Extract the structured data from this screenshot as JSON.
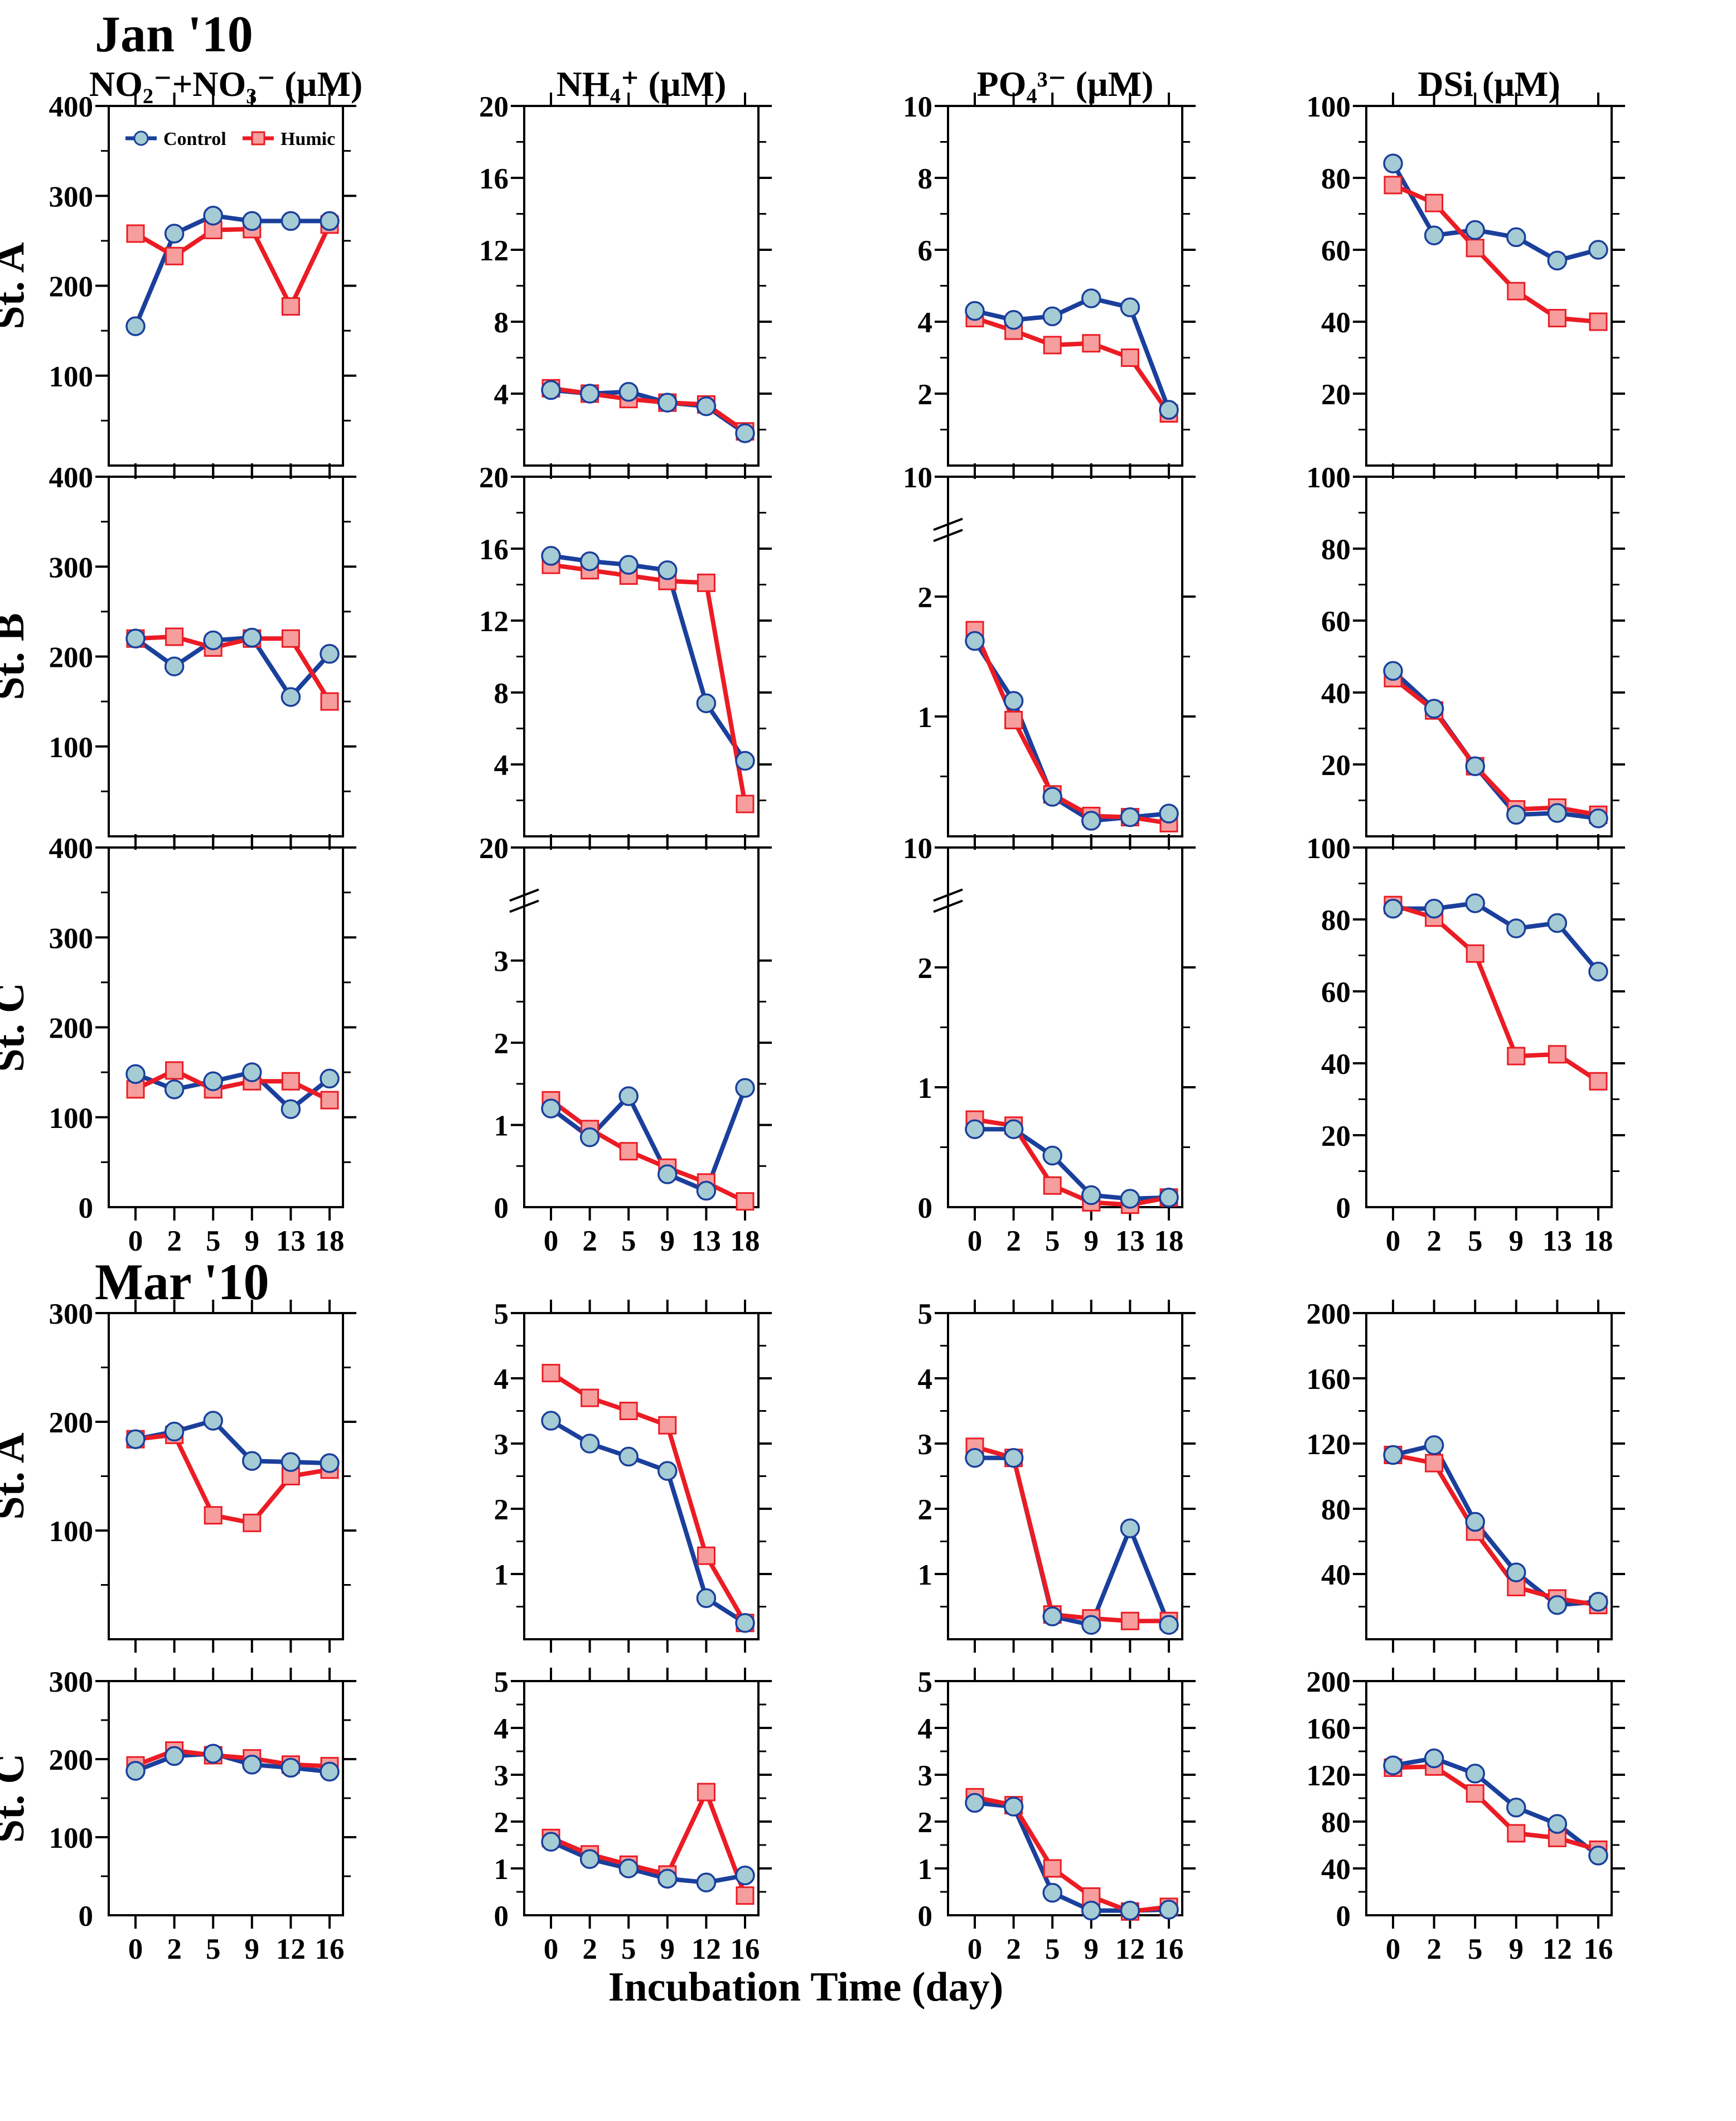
{
  "chart_data": {
    "type": "line",
    "x_label": "Incubation Time (day)",
    "zero_label": "0",
    "grid": false,
    "legend_position": "inside top-left of first panel",
    "legend": {
      "control": "Control",
      "humic": "Humic"
    },
    "colors": {
      "control_line": "#1a3f9c",
      "control_marker_fill": "#a5cbd4",
      "humic_line": "#eb1c24",
      "humic_marker_fill": "#f69e9e",
      "frame": "#000000"
    },
    "columns": [
      {
        "key": "no2no3",
        "title": "NO₂⁻+NO₃⁻ (µM)"
      },
      {
        "key": "nh4",
        "title": "NH₄⁺ (µM)"
      },
      {
        "key": "po4",
        "title": "PO₄³⁻ (µM)"
      },
      {
        "key": "dsi",
        "title": "DSi (µM)"
      }
    ],
    "sections": [
      {
        "title": "Jan '10",
        "x": [
          0,
          2,
          5,
          9,
          13,
          18
        ],
        "rows": [
          {
            "station": "St. A",
            "show_zero_label": false,
            "show_x_labels": false,
            "panels": [
              {
                "col": "no2no3",
                "ymax": 400,
                "yticks": [
                  100,
                  200,
                  300,
                  400
                ],
                "minor": 50,
                "legend": true,
                "control": [
                  155,
                  258,
                  278,
                  272,
                  272,
                  272
                ],
                "humic": [
                  258,
                  233,
                  262,
                  263,
                  177,
                  268
                ]
              },
              {
                "col": "nh4",
                "ymax": 20,
                "yticks": [
                  4,
                  8,
                  12,
                  16,
                  20
                ],
                "minor": 2,
                "control": [
                  4.2,
                  4.0,
                  4.1,
                  3.5,
                  3.3,
                  1.8
                ],
                "humic": [
                  4.3,
                  4.0,
                  3.7,
                  3.5,
                  3.4,
                  1.9
                ]
              },
              {
                "col": "po4",
                "ymax": 10,
                "yticks": [
                  2,
                  4,
                  6,
                  8,
                  10
                ],
                "minor": 1,
                "control": [
                  4.3,
                  4.05,
                  4.15,
                  4.65,
                  4.4,
                  1.55
                ],
                "humic": [
                  4.1,
                  3.75,
                  3.35,
                  3.4,
                  3.0,
                  1.45
                ]
              },
              {
                "col": "dsi",
                "ymax": 100,
                "yticks": [
                  20,
                  40,
                  60,
                  80,
                  100
                ],
                "minor": 10,
                "control": [
                  84,
                  64,
                  65.5,
                  63.5,
                  57,
                  60
                ],
                "humic": [
                  78,
                  73,
                  60.5,
                  48.5,
                  41,
                  40
                ]
              }
            ]
          },
          {
            "station": "St. B",
            "show_zero_label": false,
            "show_x_labels": false,
            "panels": [
              {
                "col": "no2no3",
                "ymax": 400,
                "yticks": [
                  100,
                  200,
                  300,
                  400
                ],
                "minor": 50,
                "control": [
                  220,
                  189,
                  218,
                  221,
                  155,
                  203
                ],
                "humic": [
                  220,
                  222,
                  210,
                  220,
                  220,
                  150
                ]
              },
              {
                "col": "nh4",
                "ymax": 20,
                "yticks": [
                  4,
                  8,
                  12,
                  16,
                  20
                ],
                "minor": 2,
                "control": [
                  15.6,
                  15.3,
                  15.1,
                  14.8,
                  7.4,
                  4.2
                ],
                "humic": [
                  15.1,
                  14.8,
                  14.5,
                  14.2,
                  14.1,
                  1.8
                ]
              },
              {
                "col": "po4",
                "broken": {
                  "top_label": 10,
                  "sub_max": 2.4
                },
                "yticks": [
                  1,
                  2
                ],
                "minor": 0.5,
                "control": [
                  1.63,
                  1.13,
                  0.33,
                  0.13,
                  0.16,
                  0.19
                ],
                "humic": [
                  1.72,
                  0.97,
                  0.35,
                  0.17,
                  0.16,
                  0.11
                ]
              },
              {
                "col": "dsi",
                "ymax": 100,
                "yticks": [
                  20,
                  40,
                  60,
                  80,
                  100
                ],
                "minor": 10,
                "control": [
                  46,
                  35.5,
                  19.5,
                  6,
                  6.5,
                  5
                ],
                "humic": [
                  44,
                  35,
                  19.5,
                  7.5,
                  8,
                  6
                ]
              }
            ]
          },
          {
            "station": "St. C",
            "show_zero_label": true,
            "show_x_labels": true,
            "panels": [
              {
                "col": "no2no3",
                "ymax": 400,
                "yticks": [
                  100,
                  200,
                  300,
                  400
                ],
                "minor": 50,
                "control": [
                  148,
                  131,
                  140,
                  150,
                  109,
                  143
                ],
                "humic": [
                  131,
                  152,
                  131,
                  140,
                  140,
                  119
                ]
              },
              {
                "col": "nh4",
                "broken": {
                  "top_label": 20,
                  "sub_max": 3.5
                },
                "yticks": [
                  1,
                  2,
                  3
                ],
                "minor": 0.5,
                "control": [
                  1.2,
                  0.85,
                  1.35,
                  0.4,
                  0.2,
                  1.45
                ],
                "humic": [
                  1.3,
                  0.95,
                  0.68,
                  0.48,
                  0.3,
                  0.07
                ]
              },
              {
                "col": "po4",
                "broken": {
                  "top_label": 10,
                  "sub_max": 2.4
                },
                "yticks": [
                  1,
                  2
                ],
                "minor": 0.5,
                "control": [
                  0.65,
                  0.65,
                  0.43,
                  0.1,
                  0.07,
                  0.08
                ],
                "humic": [
                  0.73,
                  0.68,
                  0.18,
                  0.04,
                  0.02,
                  0.08
                ]
              },
              {
                "col": "dsi",
                "ymax": 100,
                "yticks": [
                  20,
                  40,
                  60,
                  80,
                  100
                ],
                "minor": 10,
                "control": [
                  83,
                  83,
                  84.5,
                  77.5,
                  79,
                  65.5
                ],
                "humic": [
                  84,
                  80.5,
                  70.5,
                  42,
                  42.5,
                  35
                ]
              }
            ]
          }
        ]
      },
      {
        "title": "Mar '10",
        "x": [
          0,
          2,
          5,
          9,
          12,
          16
        ],
        "rows": [
          {
            "station": "St. A",
            "show_zero_label": false,
            "show_x_labels": false,
            "panels": [
              {
                "col": "no2no3",
                "ymax": 300,
                "yticks": [
                  100,
                  200,
                  300
                ],
                "minor": 50,
                "control": [
                  184,
                  191,
                  201,
                  164,
                  163,
                  162
                ],
                "humic": [
                  184,
                  188,
                  114,
                  107,
                  150,
                  156
                ]
              },
              {
                "col": "nh4",
                "ymax": 5,
                "yticks": [
                  1,
                  2,
                  3,
                  4,
                  5
                ],
                "minor": 0.5,
                "control": [
                  3.35,
                  3.0,
                  2.8,
                  2.58,
                  0.63,
                  0.25
                ],
                "humic": [
                  4.08,
                  3.7,
                  3.5,
                  3.28,
                  1.28,
                  0.25
                ]
              },
              {
                "col": "po4",
                "ymax": 5,
                "yticks": [
                  1,
                  2,
                  3,
                  4,
                  5
                ],
                "minor": 0.5,
                "control": [
                  2.78,
                  2.78,
                  0.35,
                  0.22,
                  1.7,
                  0.22
                ],
                "humic": [
                  2.95,
                  2.78,
                  0.38,
                  0.32,
                  0.28,
                  0.28
                ]
              },
              {
                "col": "dsi",
                "ymax": 200,
                "yticks": [
                  40,
                  80,
                  120,
                  160,
                  200
                ],
                "minor": 20,
                "control": [
                  113,
                  119,
                  72,
                  41,
                  21,
                  23
                ],
                "humic": [
                  113,
                  108,
                  66,
                  32,
                  25,
                  21
                ]
              }
            ]
          },
          {
            "station": "St. C",
            "show_zero_label": true,
            "show_x_labels": true,
            "panels": [
              {
                "col": "no2no3",
                "ymax": 300,
                "yticks": [
                  100,
                  200,
                  300
                ],
                "minor": 50,
                "control": [
                  185,
                  204,
                  207,
                  193,
                  189,
                  184
                ],
                "humic": [
                  192,
                  211,
                  205,
                  201,
                  193,
                  191
                ]
              },
              {
                "col": "nh4",
                "ymax": 5,
                "yticks": [
                  1,
                  2,
                  3,
                  4,
                  5
                ],
                "minor": 0.5,
                "control": [
                  1.57,
                  1.2,
                  1.0,
                  0.78,
                  0.7,
                  0.85
                ],
                "humic": [
                  1.65,
                  1.3,
                  1.08,
                  0.87,
                  2.63,
                  0.42
                ]
              },
              {
                "col": "po4",
                "ymax": 5,
                "yticks": [
                  1,
                  2,
                  3,
                  4,
                  5
                ],
                "minor": 0.5,
                "control": [
                  2.4,
                  2.32,
                  0.48,
                  0.1,
                  0.1,
                  0.12
                ],
                "humic": [
                  2.52,
                  2.35,
                  1.0,
                  0.4,
                  0.08,
                  0.18
                ]
              },
              {
                "col": "dsi",
                "ymax": 200,
                "yticks": [
                  40,
                  80,
                  120,
                  160,
                  200
                ],
                "minor": 20,
                "control": [
                  128,
                  134,
                  121,
                  92,
                  78,
                  51
                ],
                "humic": [
                  126,
                  127,
                  104,
                  70,
                  66,
                  56
                ]
              }
            ]
          }
        ]
      }
    ]
  }
}
